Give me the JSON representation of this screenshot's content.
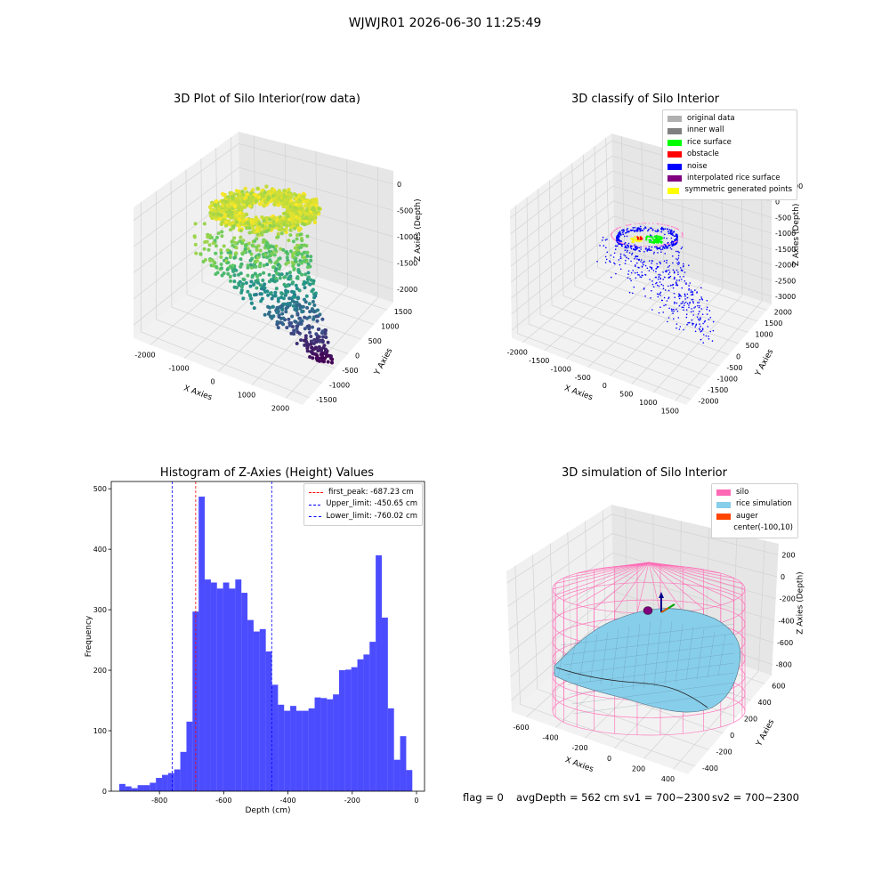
{
  "figure": {
    "suptitle": "WJWJR01 2026-06-30 11:25:49"
  },
  "chart_data": [
    {
      "type": "scatter",
      "title": "3D Plot of Silo Interior(row data)",
      "xlabel": "X Axies",
      "ylabel": "Y Axies",
      "zlabel": "Z Axies (Depth)",
      "x_ticks": [
        "-2000",
        "-1000",
        "0",
        "1000",
        "2000"
      ],
      "y_ticks": [
        "-1500",
        "-1000",
        "-500",
        "0",
        "500",
        "1000",
        "1500"
      ],
      "z_ticks": [
        "0",
        "-500",
        "-1000",
        "-1500",
        "-2000"
      ],
      "colormap": "viridis"
    },
    {
      "type": "scatter",
      "title": "3D classify of Silo Interior",
      "xlabel": "X Axies",
      "ylabel": "Y Axies",
      "zlabel": "Z Axies (Depth)",
      "x_ticks": [
        "-2000",
        "-1500",
        "-1000",
        "-500",
        "0",
        "500",
        "1000",
        "1500"
      ],
      "y_ticks": [
        "-2000",
        "-1500",
        "-1000",
        "-500",
        "0",
        "500",
        "1000",
        "1500",
        "2000"
      ],
      "z_ticks": [
        "500",
        "0",
        "-500",
        "-1000",
        "-1500",
        "-2000",
        "-2500",
        "-3000"
      ],
      "z_top_partial": "00",
      "legend": [
        {
          "label": "original data",
          "color": "#b0b0b0"
        },
        {
          "label": "inner wall",
          "color": "#808080"
        },
        {
          "label": "rice surface",
          "color": "#00ff00"
        },
        {
          "label": "obstacle",
          "color": "#ff0000"
        },
        {
          "label": "noise",
          "color": "#0000ff"
        },
        {
          "label": "interpolated rice surface",
          "color": "#800080"
        },
        {
          "label": "symmetric generated points",
          "color": "#ffff00"
        }
      ]
    },
    {
      "type": "bar",
      "title": "Histogram of Z-Axies (Height) Values",
      "xlabel": "Depth (cm)",
      "ylabel": "Frequency",
      "xlim": [
        -950,
        25
      ],
      "ylim": [
        0,
        512
      ],
      "x_ticks": [
        "-800",
        "-600",
        "-400",
        "-200",
        "0"
      ],
      "y_ticks": [
        "0",
        "100",
        "200",
        "300",
        "400",
        "500"
      ],
      "bin_start": -925,
      "bin_width": 19,
      "values": [
        12,
        8,
        5,
        10,
        10,
        14,
        22,
        27,
        30,
        36,
        65,
        115,
        297,
        487,
        350,
        345,
        335,
        345,
        335,
        350,
        328,
        283,
        264,
        268,
        231,
        176,
        143,
        133,
        141,
        133,
        133,
        137,
        155,
        154,
        152,
        160,
        200,
        201,
        205,
        218,
        226,
        247,
        390,
        287,
        137,
        52,
        91,
        35
      ],
      "bar_color": "#0000ff",
      "vlines": [
        {
          "label": "first_peak: -687.23 cm",
          "value": -687.23,
          "color": "#ff0000"
        },
        {
          "label": "Upper_limit: -450.65 cm",
          "value": -450.65,
          "color": "#0000ff"
        },
        {
          "label": "Lower_limit: -760.02 cm",
          "value": -760.02,
          "color": "#0000ff"
        }
      ]
    },
    {
      "type": "scatter",
      "title": "3D simulation of Silo Interior",
      "xlabel": "X Axies",
      "ylabel": "Y Axies",
      "zlabel": "Z Axies (Depth)",
      "x_ticks": [
        "-600",
        "-400",
        "-200",
        "0",
        "200",
        "400"
      ],
      "y_ticks": [
        "-400",
        "-200",
        "0",
        "200",
        "400",
        "600"
      ],
      "z_ticks": [
        "200",
        "0",
        "-200",
        "-400",
        "-600",
        "-800"
      ],
      "legend": [
        {
          "label": "silo",
          "color": "#ff69b4"
        },
        {
          "label": "rice simulation",
          "color": "#87ceeb"
        },
        {
          "label": "auger",
          "color": "#ff4500"
        },
        {
          "label": "center(-100,10)",
          "color": ""
        }
      ]
    }
  ],
  "status": {
    "flag": "flag = 0",
    "avg": "avgDepth = 562 cm",
    "sv1": "sv1 = 700~2300",
    "sv2": "sv2 = 700~2300"
  }
}
